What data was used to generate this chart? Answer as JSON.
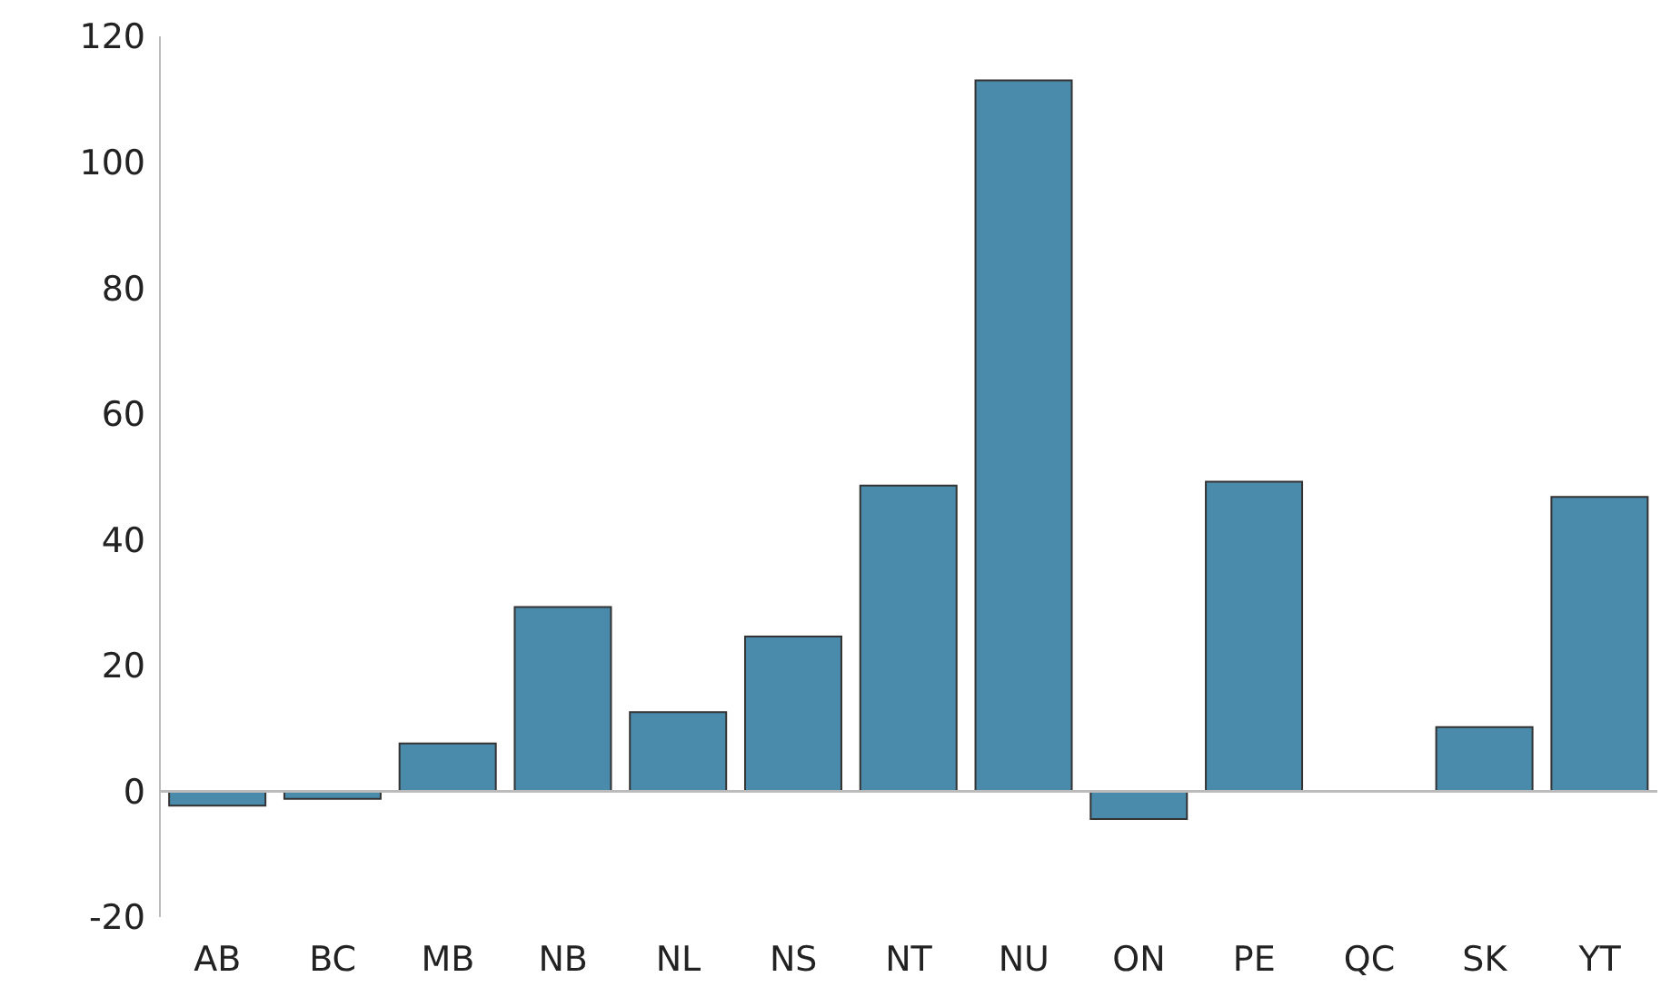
{
  "chart_data": {
    "type": "bar",
    "categories": [
      "AB",
      "BC",
      "MB",
      "NB",
      "NL",
      "NS",
      "NT",
      "NU",
      "ON",
      "PE",
      "QC",
      "SK",
      "YT"
    ],
    "values": [
      -2.3,
      -1.2,
      7.6,
      29.3,
      12.6,
      24.6,
      48.6,
      113,
      -4.4,
      49.2,
      0,
      10.2,
      46.8
    ],
    "color": "#4a8aab",
    "ylim": [
      -20,
      120
    ],
    "yticks": [
      -20,
      0,
      20,
      40,
      60,
      80,
      100,
      120
    ],
    "ref_lines": [
      {
        "axis": "y",
        "value": 0,
        "color": "#bbbbbb"
      }
    ]
  }
}
